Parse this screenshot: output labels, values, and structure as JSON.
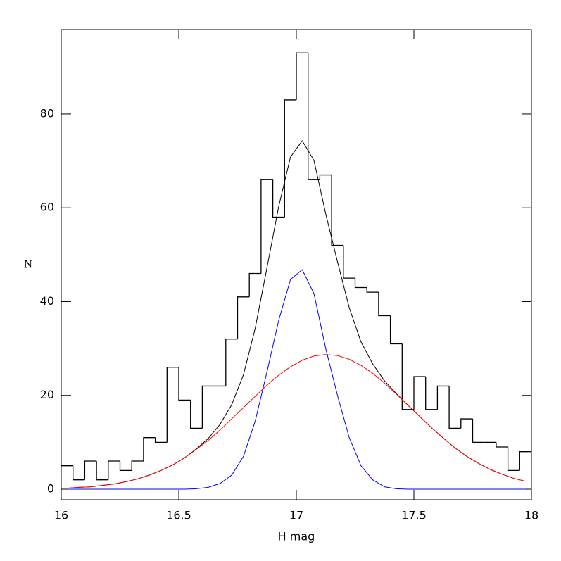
{
  "chart_data": {
    "type": "histogram",
    "xlabel": "H mag",
    "ylabel": "N",
    "bins": [
      16,
      16.05,
      16.1,
      16.15,
      16.2,
      16.25,
      16.3,
      16.35,
      16.4,
      16.45,
      16.5,
      16.55,
      16.6,
      16.65,
      16.7,
      16.75,
      16.8,
      16.85,
      16.9,
      16.95,
      17,
      17.05,
      17.1,
      17.15,
      17.2,
      17.25,
      17.3,
      17.35,
      17.4,
      17.45,
      17.5,
      17.55,
      17.6,
      17.65,
      17.7,
      17.75,
      17.8,
      17.85,
      17.9,
      17.95,
      18
    ],
    "counts": [
      5,
      2,
      6,
      2,
      6,
      4,
      6,
      11,
      10,
      26,
      19,
      13,
      22,
      22,
      32,
      41,
      46,
      66,
      58,
      83,
      93,
      66,
      67,
      52,
      45,
      43,
      42,
      37,
      31,
      17,
      24,
      17,
      22,
      13,
      15,
      10,
      10,
      9,
      4,
      8
    ],
    "color": "#000000",
    "x": [
      16.025,
      16.075,
      16.125,
      16.175,
      16.225,
      16.275,
      16.325,
      16.375,
      16.425,
      16.475,
      16.525,
      16.575,
      16.625,
      16.675,
      16.725,
      16.775,
      16.825,
      16.875,
      16.925,
      16.975,
      17.025,
      17.075,
      17.125,
      17.175,
      17.225,
      17.275,
      17.325,
      17.375,
      17.425,
      17.475,
      17.525,
      17.575,
      17.625,
      17.675,
      17.725,
      17.775,
      17.825,
      17.875,
      17.925,
      17.975
    ],
    "series": [
      {
        "color": "#000000",
        "values": [
          0.2,
          0.4,
          0.5,
          0.8,
          1.1,
          1.6,
          2.2,
          3.0,
          4.0,
          5.2,
          6.7,
          8.6,
          10.8,
          13.8,
          18.0,
          24.4,
          34.3,
          47.2,
          60.3,
          70.8,
          74.3,
          70.1,
          58.7,
          48.5,
          38.7,
          31.4,
          26.7,
          23.1,
          20.4,
          17.9,
          15.5,
          13.1,
          10.9,
          8.8,
          7.0,
          5.5,
          4.2,
          3.2,
          2.3,
          1.7
        ]
      },
      {
        "color": "#ff0000",
        "values": [
          0.2,
          0.4,
          0.5,
          0.8,
          1.1,
          1.6,
          2.2,
          3.0,
          4.0,
          5.2,
          6.7,
          8.5,
          10.4,
          12.6,
          15.0,
          17.4,
          19.8,
          22.2,
          24.3,
          26.1,
          27.5,
          28.4,
          28.7,
          28.5,
          27.7,
          26.4,
          24.7,
          22.6,
          20.3,
          17.9,
          15.5,
          13.1,
          10.9,
          8.8,
          7.0,
          5.5,
          4.2,
          3.2,
          2.3,
          1.7
        ]
      },
      {
        "color": "#0000ff",
        "values": [
          0,
          0,
          0,
          0,
          0,
          0,
          0,
          0,
          0,
          0,
          0,
          0.1,
          0.4,
          1.2,
          3,
          7,
          14.5,
          25,
          36,
          44.7,
          46.8,
          41.7,
          30,
          20,
          11,
          5,
          2,
          0.5,
          0.1,
          0,
          0,
          0,
          0,
          0,
          0,
          0,
          0,
          0,
          0,
          0
        ]
      }
    ],
    "xlim": [
      16,
      18
    ],
    "xticks": [
      16,
      16.5,
      17,
      17.5,
      18
    ],
    "ylim": [
      -2.25,
      98
    ],
    "yticks": [
      0,
      20,
      40,
      60,
      80
    ]
  }
}
